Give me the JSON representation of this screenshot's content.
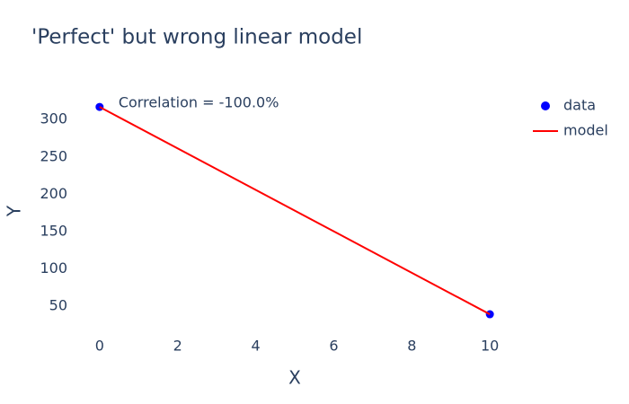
{
  "chart_data": {
    "type": "scatter",
    "title": "'Perfect' but wrong linear model",
    "x_label": "X",
    "y_label": "Y",
    "annotation": "Correlation = -100.0%",
    "x": [
      0,
      10
    ],
    "series": [
      {
        "name": "data",
        "color": "#0000ff",
        "mode": "markers",
        "values": [
          317,
          39
        ]
      },
      {
        "name": "model",
        "color": "#ff0000",
        "mode": "lines",
        "values": [
          317,
          39
        ]
      }
    ],
    "xlim": [
      -0.71,
      10.71
    ],
    "ylim": [
      15,
      340
    ],
    "xticks": [
      0,
      2,
      4,
      6,
      8,
      10
    ],
    "yticks": [
      50,
      100,
      150,
      200,
      250,
      300
    ],
    "grid": false,
    "legend": "right"
  }
}
